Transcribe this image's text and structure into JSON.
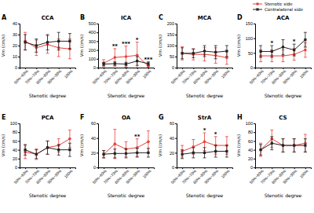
{
  "chart_data": [
    {
      "type": "line",
      "panel": "A",
      "title": "CCA",
      "xlabel": "Stenotic degree",
      "ylabel": "Vm (cm/s)",
      "categories": [
        "50%~69%",
        "70%~79%",
        "80%~89%",
        "90%~99%",
        "100%"
      ],
      "ylim": [
        0,
        40
      ],
      "yticks": [
        0,
        10,
        20,
        30,
        40
      ],
      "series": [
        {
          "name": "Stenotic side",
          "color": "#e8403a",
          "marker": "circle",
          "values": [
            24,
            18,
            21,
            18,
            17
          ],
          "errors": [
            8,
            7,
            8,
            8,
            9
          ]
        },
        {
          "name": "Contralateral side",
          "color": "#222222",
          "marker": "square",
          "values": [
            23,
            20,
            23,
            24,
            24
          ],
          "errors": [
            7,
            6,
            7,
            8,
            7
          ]
        }
      ],
      "annotations": []
    },
    {
      "type": "line",
      "panel": "B",
      "title": "ICA",
      "xlabel": "Stenotic degree",
      "ylabel": "Vm (cm/s)",
      "categories": [
        "50%~69%",
        "70%~79%",
        "80%~89%",
        "90%~99%",
        "100%"
      ],
      "ylim": [
        0,
        500
      ],
      "yticks": [
        0,
        100,
        200,
        300,
        400,
        500
      ],
      "series": [
        {
          "name": "Stenotic side",
          "color": "#e8403a",
          "marker": "circle",
          "values": [
            50,
            115,
            125,
            140,
            15
          ],
          "errors": [
            40,
            100,
            120,
            150,
            20
          ]
        },
        {
          "name": "Contralateral side",
          "color": "#222222",
          "marker": "square",
          "values": [
            40,
            45,
            40,
            75,
            45
          ],
          "errors": [
            20,
            20,
            20,
            50,
            20
          ]
        }
      ],
      "annotations": [
        {
          "text": "**",
          "x": 1
        },
        {
          "text": "***",
          "x": 2
        },
        {
          "text": "*",
          "x": 3
        },
        {
          "text": "***",
          "x": 4
        }
      ]
    },
    {
      "type": "line",
      "panel": "C",
      "title": "MCA",
      "xlabel": "Stenotic degree",
      "ylabel": "Vm (cm/s)",
      "categories": [
        "50%~69%",
        "70%~79%",
        "80%~89%",
        "90%~99%",
        "100%"
      ],
      "ylim": [
        0,
        200
      ],
      "yticks": [
        0,
        50,
        100,
        150,
        200
      ],
      "series": [
        {
          "name": "Stenotic side",
          "color": "#e8403a",
          "marker": "circle",
          "values": [
            65,
            60,
            60,
            55,
            45
          ],
          "errors": [
            30,
            25,
            30,
            35,
            30
          ]
        },
        {
          "name": "Contralateral side",
          "color": "#222222",
          "marker": "square",
          "values": [
            65,
            65,
            75,
            70,
            75
          ],
          "errors": [
            25,
            20,
            25,
            30,
            25
          ]
        }
      ],
      "annotations": []
    },
    {
      "type": "line",
      "panel": "D",
      "title": "ACA",
      "xlabel": "Stenotic degree",
      "ylabel": "Vm (cm/s)",
      "categories": [
        "50%~69%",
        "70%~79%",
        "80%~89%",
        "90%~99%",
        "100%"
      ],
      "ylim": [
        0,
        150
      ],
      "yticks": [
        0,
        50,
        100,
        150
      ],
      "series": [
        {
          "name": "Stenotic side",
          "color": "#e8403a",
          "marker": "circle",
          "values": [
            40,
            40,
            40,
            45,
            60
          ],
          "errors": [
            20,
            20,
            20,
            20,
            25
          ]
        },
        {
          "name": "Contralateral side",
          "color": "#222222",
          "marker": "square",
          "values": [
            55,
            55,
            70,
            60,
            95
          ],
          "errors": [
            20,
            20,
            25,
            20,
            25
          ]
        }
      ],
      "annotations": [
        {
          "text": "*",
          "x": 1
        },
        {
          "text": "*",
          "x": 3
        }
      ],
      "legend": "upper right"
    },
    {
      "type": "line",
      "panel": "E",
      "title": "PCA",
      "xlabel": "Stenotic degree",
      "ylabel": "Vm (cm/s)",
      "categories": [
        "50%~69%",
        "70%~79%",
        "80%~89%",
        "90%~99%",
        "100%"
      ],
      "ylim": [
        0,
        100
      ],
      "yticks": [
        0,
        20,
        40,
        60,
        80,
        100
      ],
      "series": [
        {
          "name": "Stenotic side",
          "color": "#e8403a",
          "marker": "circle",
          "values": [
            35,
            30,
            45,
            50,
            65
          ],
          "errors": [
            15,
            12,
            15,
            15,
            20
          ]
        },
        {
          "name": "Contralateral side",
          "color": "#222222",
          "marker": "square",
          "values": [
            40,
            30,
            45,
            40,
            40
          ],
          "errors": [
            12,
            10,
            15,
            12,
            15
          ]
        }
      ],
      "annotations": []
    },
    {
      "type": "line",
      "panel": "F",
      "title": "OA",
      "xlabel": "Stenotic degree",
      "ylabel": "Vm (cm/s)",
      "categories": [
        "50%~69%",
        "70%~79%",
        "80%~89%",
        "90%~99%",
        "100%"
      ],
      "ylim": [
        0,
        60
      ],
      "yticks": [
        0,
        20,
        40,
        60
      ],
      "series": [
        {
          "name": "Stenotic side",
          "color": "#e8403a",
          "marker": "circle",
          "values": [
            18,
            32,
            25,
            27,
            35
          ],
          "errors": [
            5,
            20,
            10,
            12,
            15
          ]
        },
        {
          "name": "Contralateral side",
          "color": "#222222",
          "marker": "square",
          "values": [
            18,
            19,
            19,
            20,
            20
          ],
          "errors": [
            5,
            6,
            6,
            6,
            6
          ]
        }
      ],
      "annotations": [
        {
          "text": "**",
          "x": 3
        }
      ]
    },
    {
      "type": "line",
      "panel": "G",
      "title": "StrA",
      "xlabel": "Stenotic degree",
      "ylabel": "Vm (cm/s)",
      "categories": [
        "50%~69%",
        "70%~79%",
        "80%~89%",
        "90%~99%",
        "100%"
      ],
      "ylim": [
        0,
        60
      ],
      "yticks": [
        0,
        20,
        40,
        60
      ],
      "series": [
        {
          "name": "Stenotic side",
          "color": "#e8403a",
          "marker": "circle",
          "values": [
            22,
            28,
            35,
            30,
            30
          ],
          "errors": [
            8,
            10,
            12,
            12,
            12
          ]
        },
        {
          "name": "Contralateral side",
          "color": "#222222",
          "marker": "square",
          "values": [
            18,
            20,
            20,
            22,
            22
          ],
          "errors": [
            6,
            7,
            7,
            8,
            8
          ]
        }
      ],
      "annotations": [
        {
          "text": "*",
          "x": 2
        },
        {
          "text": "*",
          "x": 3
        }
      ]
    },
    {
      "type": "line",
      "panel": "H",
      "title": "CS",
      "xlabel": "Stenotic degree",
      "ylabel": "Vm (cm/s)",
      "categories": [
        "50%~69%",
        "70%~79%",
        "80%~89%",
        "90%~99%",
        "100%"
      ],
      "ylim": [
        0,
        100
      ],
      "yticks": [
        0,
        20,
        40,
        60,
        80,
        100
      ],
      "series": [
        {
          "name": "Stenotic side",
          "color": "#e8403a",
          "marker": "circle",
          "values": [
            40,
            65,
            50,
            50,
            55
          ],
          "errors": [
            15,
            20,
            15,
            15,
            20
          ]
        },
        {
          "name": "Contralateral side",
          "color": "#222222",
          "marker": "square",
          "values": [
            40,
            55,
            50,
            50,
            50
          ],
          "errors": [
            12,
            15,
            15,
            15,
            15
          ]
        }
      ],
      "annotations": []
    }
  ]
}
